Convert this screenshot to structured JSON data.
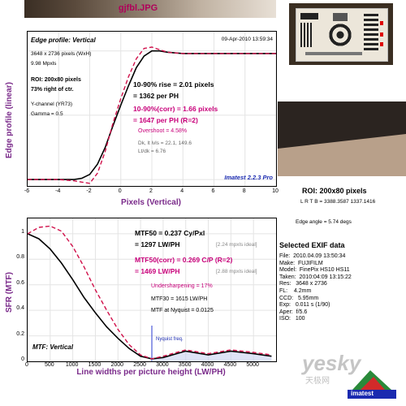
{
  "file_title": "gjfbl.JPG",
  "edge": {
    "title": "Edge profile: Vertical",
    "date": "09-Apr-2010 13:59:34",
    "pixels": "3648 x 2736 pixels (WxH)",
    "mpxls": "9.98 Mpxls",
    "roi": "ROI: 200x80 pixels",
    "position": "73% right of ctr.",
    "channel": "Y-channel  (YR73)",
    "gamma": "Gamma = 0.5",
    "rise": "10-90% rise = 2.01 pixels",
    "per_ph": "= 1362 per PH",
    "rise_corr": "10-90%(corr) = 1.66 pixels",
    "per_ph_corr": "= 1647 per PH  (R=2)",
    "overshoot": "Overshoot = 4.58%",
    "dk_lt": "Dk, lt lvls = 22.1, 149.6",
    "ltdk": "Lt/dk = 6.76",
    "brand": "Imatest 2.2.3 Pro",
    "ylabel": "Edge profile (linear)",
    "xlabel": "Pixels (Vertical)"
  },
  "mtf": {
    "title": "MTF: Vertical",
    "mtf50": "MTF50 = 0.237 Cy/Pxl",
    "lwph": "= 1297 LW/PH",
    "ideal1": "[2.24 mpxls ideal]",
    "mtf50corr": "MTF50(corr) = 0.269 C/P  (R=2)",
    "lwph_corr": "= 1469 LW/PH",
    "ideal2": "[2.88 mpxls ideal]",
    "undersharp": "Undersharpening = 17%",
    "mtf30": "MTF30 = 1615 LW/PH",
    "nyq_val": "MTF at Nyquist = 0.0125",
    "nyq_label": "Nyquist freq.",
    "ylabel": "SFR (MTF)",
    "xlabel": "Line widths per picture height (LW/PH)"
  },
  "roi_info": {
    "title": "ROI: 200x80 pixels",
    "lrtb": "L R T B = 3388.3587  1337.1416",
    "angle": "Edge angle = 5.74 degs"
  },
  "exif": {
    "title": "Selected EXIF data",
    "lines": [
      "File:  2010.04.09 13:50:34",
      "Make:  FUJIFILM",
      "Model:  FinePix HS10 HS11",
      "Taken:  2010:04:09 13:15:22",
      "Res:   3648 x 2736",
      "FL:    4.2mm",
      "CCD:   5.95mm",
      "Exp:   0.011 s (1/90)",
      "Aper:  f/5.6",
      "ISO:   100"
    ]
  },
  "watermark": {
    "text": "yesky",
    "sub": "天极网",
    "logo": "imatest"
  },
  "chart_data": [
    {
      "type": "line",
      "title": "Edge profile: Vertical",
      "xlabel": "Pixels (Vertical)",
      "ylabel": "Edge profile (linear)",
      "xlim": [
        -6,
        10
      ],
      "ylim": [
        0,
        1.1
      ],
      "xticks": [
        "-6",
        "-4",
        "-2",
        "0",
        "2",
        "4",
        "6",
        "8",
        "10"
      ],
      "series": [
        {
          "name": "",
          "x": [
            -6,
            -4,
            -3,
            -2.5,
            -2,
            -1.5,
            -1,
            -0.5,
            0,
            0.5,
            1,
            1.5,
            2,
            2.5,
            3,
            4,
            5,
            6,
            8,
            10
          ],
          "y": [
            0.0,
            0.0,
            0.0,
            0.01,
            0.04,
            0.12,
            0.25,
            0.42,
            0.58,
            0.73,
            0.87,
            0.96,
            1.0,
            1.0,
            0.99,
            0.98,
            0.98,
            0.98,
            0.98,
            0.98
          ]
        },
        {
          "name": "",
          "x": [
            -6,
            -4,
            -3,
            -2.5,
            -2,
            -1.5,
            -1,
            -0.5,
            0,
            0.5,
            1,
            1.5,
            2,
            2.5,
            3,
            4,
            5,
            6,
            8,
            10
          ],
          "y": [
            0.0,
            0.0,
            -0.01,
            -0.02,
            -0.03,
            0.05,
            0.22,
            0.44,
            0.63,
            0.8,
            0.94,
            1.02,
            1.03,
            1.01,
            0.99,
            0.98,
            0.98,
            0.98,
            0.98,
            0.98
          ]
        }
      ]
    },
    {
      "type": "line",
      "title": "MTF: Vertical",
      "xlabel": "Line widths per picture height (LW/PH)",
      "ylabel": "SFR (MTF)",
      "xlim": [
        0,
        5500
      ],
      "ylim": [
        0,
        1
      ],
      "xticks": [
        "0",
        "500",
        "1000",
        "1500",
        "2000",
        "2500",
        "3000",
        "3500",
        "4000",
        "4500",
        "5000"
      ],
      "yticks": [
        "0",
        "0.2",
        "0.4",
        "0.6",
        "0.8",
        "1"
      ],
      "series": [
        {
          "name": "",
          "x": [
            0,
            250,
            500,
            750,
            1000,
            1250,
            1500,
            1750,
            2000,
            2250,
            2500,
            2750,
            3000,
            3500,
            4000,
            4500,
            5000,
            5400
          ],
          "y": [
            1.0,
            0.96,
            0.88,
            0.77,
            0.64,
            0.5,
            0.38,
            0.27,
            0.18,
            0.1,
            0.04,
            0.02,
            0.03,
            0.08,
            0.05,
            0.08,
            0.06,
            0.04
          ]
        },
        {
          "name": "",
          "x": [
            0,
            250,
            500,
            750,
            1000,
            1250,
            1500,
            1750,
            2000,
            2250,
            2500,
            2750,
            3000,
            3500,
            4000,
            4500,
            5000,
            5400
          ],
          "y": [
            1.0,
            1.05,
            1.06,
            1.02,
            0.9,
            0.74,
            0.56,
            0.4,
            0.25,
            0.13,
            0.05,
            0.02,
            0.04,
            0.09,
            0.06,
            0.09,
            0.07,
            0.05
          ]
        }
      ]
    }
  ]
}
